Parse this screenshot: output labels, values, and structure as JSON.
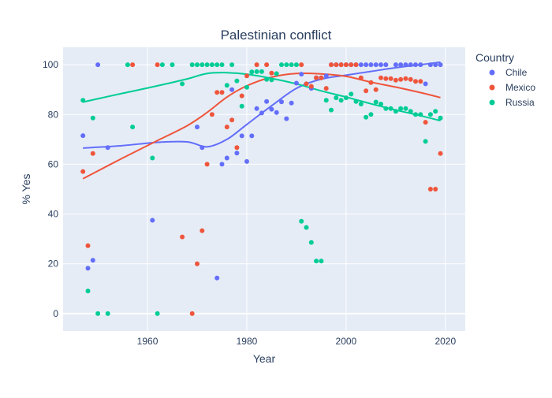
{
  "chart_data": {
    "type": "scatter",
    "title": "Palestinian conflict",
    "xlabel": "Year",
    "ylabel": "% Yes",
    "xlim": [
      1943,
      2024
    ],
    "ylim": [
      -7,
      107
    ],
    "xticks": [
      1960,
      1980,
      2000,
      2020
    ],
    "yticks": [
      0,
      20,
      40,
      60,
      80,
      100
    ],
    "grid": true,
    "background_color": "#E5ECF6",
    "legend_title": "Country",
    "legend_position": "right",
    "series": [
      {
        "name": "Chile",
        "color": "#636EFA",
        "points": [
          [
            1947,
            71.5
          ],
          [
            1948,
            18.2
          ],
          [
            1949,
            21.4
          ],
          [
            1950,
            100
          ],
          [
            1952,
            66.7
          ],
          [
            1961,
            37.5
          ],
          [
            1970,
            75
          ],
          [
            1971,
            66.7
          ],
          [
            1974,
            14.3
          ],
          [
            1975,
            60
          ],
          [
            1976,
            62.5
          ],
          [
            1977,
            90
          ],
          [
            1978,
            64.5
          ],
          [
            1979,
            71.4
          ],
          [
            1980,
            61.1
          ],
          [
            1981,
            71.4
          ],
          [
            1982,
            82.4
          ],
          [
            1983,
            80.6
          ],
          [
            1984,
            85.2
          ],
          [
            1985,
            82.1
          ],
          [
            1986,
            80.8
          ],
          [
            1987,
            85.1
          ],
          [
            1988,
            78.3
          ],
          [
            1989,
            84.6
          ],
          [
            1990,
            92.6
          ],
          [
            1991,
            96.2
          ],
          [
            1992,
            92.3
          ],
          [
            1993,
            90.5
          ],
          [
            1994,
            94.7
          ],
          [
            1995,
            94.7
          ],
          [
            1996,
            95.5
          ],
          [
            1997,
            100
          ],
          [
            1998,
            100
          ],
          [
            1999,
            100
          ],
          [
            2000,
            100
          ],
          [
            2001,
            100
          ],
          [
            2002,
            100
          ],
          [
            2003,
            100
          ],
          [
            2004,
            100
          ],
          [
            2005,
            100
          ],
          [
            2006,
            100
          ],
          [
            2007,
            100
          ],
          [
            2008,
            100
          ],
          [
            2010,
            100
          ],
          [
            2011,
            100
          ],
          [
            2012,
            100
          ],
          [
            2013,
            100
          ],
          [
            2014,
            100
          ],
          [
            2015,
            100
          ],
          [
            2016,
            92.3
          ],
          [
            2017,
            100
          ],
          [
            2018,
            100
          ],
          [
            2019,
            100
          ]
        ],
        "trend": [
          [
            1947,
            66.5
          ],
          [
            1955,
            67.5
          ],
          [
            1962,
            68.8
          ],
          [
            1968,
            69
          ],
          [
            1972,
            67
          ],
          [
            1976,
            70
          ],
          [
            1980,
            76
          ],
          [
            1985,
            83.5
          ],
          [
            1990,
            90.5
          ],
          [
            1995,
            94.2
          ],
          [
            2000,
            95.8
          ],
          [
            2005,
            97.3
          ],
          [
            2010,
            98.8
          ],
          [
            2015,
            100
          ],
          [
            2019,
            101
          ]
        ]
      },
      {
        "name": "Mexico",
        "color": "#EF553B",
        "points": [
          [
            1947,
            57.1
          ],
          [
            1948,
            27.3
          ],
          [
            1949,
            64.3
          ],
          [
            1957,
            100
          ],
          [
            1962,
            100
          ],
          [
            1967,
            30.8
          ],
          [
            1969,
            0
          ],
          [
            1970,
            20
          ],
          [
            1971,
            33.3
          ],
          [
            1972,
            60
          ],
          [
            1973,
            80
          ],
          [
            1974,
            88.9
          ],
          [
            1975,
            88.9
          ],
          [
            1976,
            75
          ],
          [
            1977,
            77.8
          ],
          [
            1978,
            66.7
          ],
          [
            1979,
            87.5
          ],
          [
            1980,
            95.5
          ],
          [
            1982,
            100
          ],
          [
            1984,
            100
          ],
          [
            1985,
            96.6
          ],
          [
            1986,
            96.4
          ],
          [
            1991,
            100
          ],
          [
            1992,
            92.3
          ],
          [
            1993,
            91.3
          ],
          [
            1994,
            94.7
          ],
          [
            1995,
            94.7
          ],
          [
            1996,
            90.5
          ],
          [
            1997,
            100
          ],
          [
            1998,
            100
          ],
          [
            1999,
            100
          ],
          [
            2000,
            100
          ],
          [
            2001,
            100
          ],
          [
            2002,
            100
          ],
          [
            2003,
            94.7
          ],
          [
            2004,
            89.5
          ],
          [
            2005,
            92.8
          ],
          [
            2006,
            90
          ],
          [
            2007,
            94.7
          ],
          [
            2008,
            94.4
          ],
          [
            2009,
            94.4
          ],
          [
            2010,
            93.8
          ],
          [
            2011,
            94.1
          ],
          [
            2012,
            94.4
          ],
          [
            2013,
            94.1
          ],
          [
            2014,
            93.3
          ],
          [
            2015,
            93.3
          ],
          [
            2016,
            76.9
          ],
          [
            2017,
            50
          ],
          [
            2018,
            50
          ],
          [
            2019,
            64.3
          ]
        ],
        "trend": [
          [
            1947,
            54.2
          ],
          [
            1955,
            62.5
          ],
          [
            1962,
            69.5
          ],
          [
            1968,
            75.5
          ],
          [
            1972,
            80.8
          ],
          [
            1976,
            87
          ],
          [
            1980,
            91.5
          ],
          [
            1985,
            95
          ],
          [
            1990,
            96.5
          ],
          [
            1995,
            96.3
          ],
          [
            2000,
            95.3
          ],
          [
            2005,
            93
          ],
          [
            2010,
            91
          ],
          [
            2015,
            88.8
          ],
          [
            2019,
            86.8
          ]
        ]
      },
      {
        "name": "Russia",
        "color": "#00CC96",
        "points": [
          [
            1947,
            85.7
          ],
          [
            1948,
            9.1
          ],
          [
            1949,
            78.6
          ],
          [
            1950,
            0
          ],
          [
            1952,
            0
          ],
          [
            1956,
            100
          ],
          [
            1957,
            75
          ],
          [
            1961,
            62.5
          ],
          [
            1962,
            0
          ],
          [
            1963,
            100
          ],
          [
            1965,
            100
          ],
          [
            1967,
            92.3
          ],
          [
            1969,
            100
          ],
          [
            1970,
            100
          ],
          [
            1971,
            100
          ],
          [
            1972,
            100
          ],
          [
            1973,
            100
          ],
          [
            1974,
            100
          ],
          [
            1975,
            100
          ],
          [
            1976,
            91.7
          ],
          [
            1977,
            100
          ],
          [
            1978,
            93.5
          ],
          [
            1979,
            83.3
          ],
          [
            1980,
            90.9
          ],
          [
            1981,
            97.1
          ],
          [
            1982,
            97.2
          ],
          [
            1983,
            97.2
          ],
          [
            1984,
            94.1
          ],
          [
            1985,
            93.9
          ],
          [
            1986,
            96.4
          ],
          [
            1987,
            100
          ],
          [
            1988,
            100
          ],
          [
            1989,
            100
          ],
          [
            1990,
            100
          ],
          [
            1991,
            37.1
          ],
          [
            1992,
            34.6
          ],
          [
            1993,
            28.6
          ],
          [
            1994,
            21.1
          ],
          [
            1995,
            21.1
          ],
          [
            1996,
            85.7
          ],
          [
            1997,
            81.8
          ],
          [
            1998,
            86.7
          ],
          [
            1999,
            85.7
          ],
          [
            2000,
            86.7
          ],
          [
            2001,
            88.2
          ],
          [
            2002,
            85.2
          ],
          [
            2003,
            84.2
          ],
          [
            2004,
            78.9
          ],
          [
            2005,
            80
          ],
          [
            2006,
            85
          ],
          [
            2007,
            84.2
          ],
          [
            2008,
            82.4
          ],
          [
            2009,
            82.4
          ],
          [
            2010,
            81.3
          ],
          [
            2011,
            82.4
          ],
          [
            2012,
            82.4
          ],
          [
            2013,
            81.3
          ],
          [
            2014,
            80
          ],
          [
            2015,
            80
          ],
          [
            2016,
            69.2
          ],
          [
            2017,
            80
          ],
          [
            2018,
            81.3
          ],
          [
            2019,
            78.6
          ]
        ],
        "trend": [
          [
            1947,
            85
          ],
          [
            1955,
            88.5
          ],
          [
            1962,
            91.5
          ],
          [
            1968,
            94.3
          ],
          [
            1972,
            96.5
          ],
          [
            1976,
            96.8
          ],
          [
            1980,
            96.2
          ],
          [
            1985,
            94.5
          ],
          [
            1990,
            92.3
          ],
          [
            1995,
            89.5
          ],
          [
            2000,
            87
          ],
          [
            2005,
            84.3
          ],
          [
            2010,
            81.8
          ],
          [
            2015,
            79.5
          ],
          [
            2019,
            77.5
          ]
        ]
      }
    ]
  }
}
